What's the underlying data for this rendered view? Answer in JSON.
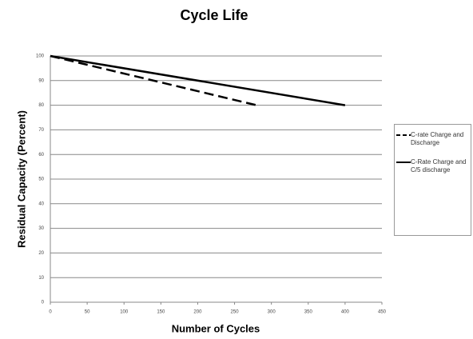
{
  "chart_data": {
    "type": "line",
    "title": "Cycle Life",
    "x_label": "Number of Cycles",
    "y_label": "Residual Capacity (Percent)",
    "series": [
      {
        "name": "C-rate Charge and Discharge",
        "color": "#000000",
        "dashed": true,
        "x": [
          0,
          280
        ],
        "values": [
          100,
          80
        ]
      },
      {
        "name": "C-Rate Charge and C/5 discharge",
        "color": "#000000",
        "dashed": false,
        "x": [
          0,
          400
        ],
        "values": [
          100,
          80
        ]
      }
    ],
    "xlim": [
      0,
      450
    ],
    "xticks": [
      0,
      50,
      100,
      150,
      200,
      250,
      300,
      350,
      400,
      450
    ],
    "ylim": [
      0,
      100
    ],
    "yticks": [
      0,
      10,
      20,
      30,
      40,
      50,
      60,
      70,
      80,
      90,
      100
    ],
    "grid": true,
    "legend": "right"
  }
}
